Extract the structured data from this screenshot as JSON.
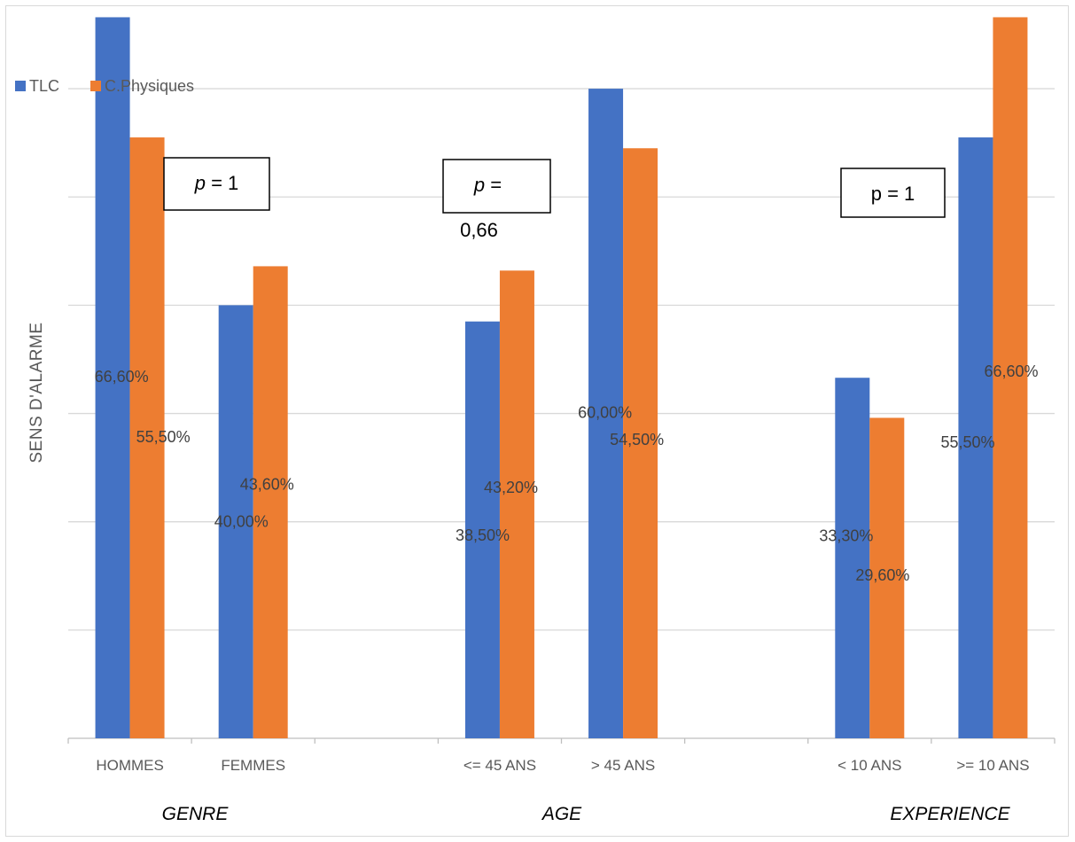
{
  "chart_data": {
    "type": "bar",
    "ylabel": "SENS D'ALARME",
    "ylim": [
      0,
      65
    ],
    "grid": true,
    "legend_position": "top-left",
    "categories": [
      "HOMMES",
      "FEMMES",
      "<= 45 ANS",
      "> 45 ANS",
      "< 10 ANS",
      ">= 10 ANS"
    ],
    "groups": [
      {
        "label": "GENRE",
        "categories": [
          "HOMMES",
          "FEMMES"
        ],
        "p_value": "p = 1"
      },
      {
        "label": "AGE",
        "categories": [
          "<= 45 ANS",
          "> 45 ANS"
        ],
        "p_value": "p = 0,66"
      },
      {
        "label": "EXPERIENCE",
        "categories": [
          "< 10 ANS",
          ">= 10 ANS"
        ],
        "p_value": "p = 1"
      }
    ],
    "series": [
      {
        "name": "TLC",
        "color": "#4472C4",
        "values": [
          66.6,
          40.0,
          38.5,
          60.0,
          33.3,
          55.5
        ],
        "labels": [
          "66,60%",
          "40,00%",
          "38,50%",
          "60,00%",
          "33,30%",
          "55,50%"
        ]
      },
      {
        "name": "C.Physiques",
        "color": "#ED7D31",
        "values": [
          55.5,
          43.6,
          43.2,
          54.5,
          29.6,
          66.6
        ],
        "labels": [
          "55,50%",
          "43,60%",
          "43,20%",
          "54,50%",
          "29,60%",
          "66,60%"
        ]
      }
    ]
  }
}
